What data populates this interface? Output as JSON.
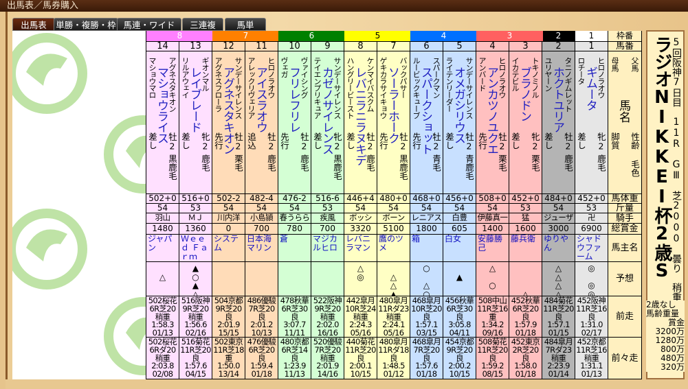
{
  "window": {
    "title": "出馬表／馬券購入"
  },
  "tabs": [
    {
      "label": "出馬表",
      "active": true
    },
    {
      "label": "単勝・複勝・枠連"
    },
    {
      "label": "馬連・ワイド"
    },
    {
      "label": "三連複"
    },
    {
      "label": "馬単"
    }
  ],
  "header_labels": {
    "frame": "枠番",
    "number": "馬番",
    "sire": "父馬",
    "dam": "母馬",
    "name": "馬名",
    "sex_age": "性齢",
    "style": "脚質",
    "color": "毛色",
    "weight": "馬体重",
    "kinryo": "斤量",
    "jockey": "騎手",
    "prize": "総賞金",
    "owner": "馬主名",
    "prediction": "予想",
    "prev": "前走",
    "prev2": "前々走"
  },
  "frame_colors": {
    "8": [
      "#ff80ff",
      "#ffe0ff",
      "#fff"
    ],
    "7": [
      "#ff8000",
      "#ffdcb8",
      "#fff"
    ],
    "6": [
      "#008000",
      "#d4ffd4",
      "#fff"
    ],
    "5": [
      "#ffff00",
      "#ffffc4",
      "#000"
    ],
    "4": [
      "#0070ff",
      "#c8e0ff",
      "#fff"
    ],
    "3": [
      "#ff6060",
      "#ffc0c0",
      "#fff"
    ],
    "2": [
      "#000000",
      "#b4b4b4",
      "#fff"
    ],
    "1": [
      "#ffffff",
      "#e6e6e6",
      "#000"
    ]
  },
  "horses": [
    {
      "frame": "8",
      "num": "14",
      "sire": "アグネスタキオン",
      "dam": "マショウマロ",
      "name": "マショウライス",
      "sex": "牡2",
      "color": "黒鹿毛",
      "style": "差し",
      "weight": "502+0",
      "kinryo": "54",
      "jockey": "羽山",
      "prize": "1480",
      "owner": "ジャパン",
      "marks": [
        "",
        "△",
        "",
        ""
      ],
      "prev": [
        "502桜花",
        "6R芝20",
        "稍重",
        "1:58.3",
        "01/13"
      ],
      "prev2": [
        "502桜花",
        "6Rダ20",
        "稍重",
        "2:03.8",
        "02/08"
      ]
    },
    {
      "frame": "8",
      "num": "13",
      "sire": "ギオンマル",
      "dam": "リルアウェイ",
      "name": "レイブレード",
      "sex": "牝2",
      "color": "鹿毛",
      "style": "差し",
      "weight": "516+0",
      "kinryo": "53",
      "jockey": "ＭＪ",
      "prize": "1360",
      "owner": "Ｗｅｅｄ Ｆａｒｍ",
      "marks": [
        "▲",
        "○",
        "▲",
        "△"
      ],
      "prev": [
        "516阪神",
        "9R芝20",
        "稍重",
        "1:56.6",
        "02/16"
      ],
      "prev2": [
        "516菊花",
        "11R芝20",
        "良",
        "1:57.6",
        "04/15"
      ]
    },
    {
      "frame": "7",
      "num": "12",
      "sire": "サンデーサイレンス",
      "dam": "アグネスフローラ",
      "name": "アグネスタキオン",
      "sex": "牡2",
      "color": "栗毛",
      "style": "先行",
      "weight": "502-2",
      "kinryo": "54",
      "jockey": "川内洋",
      "prize": "0",
      "owner": "システム",
      "marks": [
        "",
        "",
        "",
        ""
      ],
      "prev": [
        "504京都",
        "9R芝20",
        "良",
        "2:01.9",
        "15/15"
      ],
      "prev2": [
        "502東京",
        "11R芝18",
        "重",
        "1:50.0",
        "13/14"
      ]
    },
    {
      "frame": "7",
      "num": "11",
      "sire": "ヒロノラオウ",
      "dam": "アレックリヴェリア",
      "name": "アイスラオウ",
      "sex": "牡2",
      "color": "鹿毛",
      "style": "追込",
      "weight": "482-4",
      "kinryo": "54",
      "jockey": "小島頴",
      "prize": "700",
      "owner": "日本海マリン",
      "marks": [
        "",
        "",
        "",
        ""
      ],
      "prev": [
        "486優駿",
        "7R芝20",
        "良",
        "2:01.2",
        "10/13"
      ],
      "prev2": [
        "476優駿",
        "6R芝20",
        "良",
        "1:59.4",
        "01/18"
      ]
    },
    {
      "frame": "6",
      "num": "10",
      "sire": "ヴァイシング",
      "dam": "ヴェガ",
      "name": "フリレフリレ",
      "sex": "牡2",
      "color": "鹿毛",
      "style": "先行",
      "weight": "476-2",
      "kinryo": "54",
      "jockey": "春うらら",
      "prize": "780",
      "owner": "蒼",
      "marks": [
        "",
        "",
        "",
        ""
      ],
      "prev": [
        "478秋華",
        "6R芝30",
        "良",
        "3:07.7",
        "11/11"
      ],
      "prev2": [
        "480京都",
        "6R芝14",
        "良",
        "1:23.9",
        "11/13"
      ]
    },
    {
      "frame": "6",
      "num": "9",
      "sire": "サンデーサイレンス",
      "dam": "テイエンプリキュア",
      "name": "カゼノサイレンス",
      "sex": "牝2",
      "color": "黒鹿毛",
      "style": "差し",
      "weight": "516-6",
      "kinryo": "53",
      "jockey": "疾風",
      "prize": "700",
      "owner": "マジカルヒロ",
      "marks": [
        "",
        "",
        "",
        ""
      ],
      "prev": [
        "522阪神",
        "9R芝20",
        "稍重",
        "2:02.0",
        "16/16"
      ],
      "prev2": [
        "520優駿",
        "7R芝20",
        "稍重",
        "2:01.9",
        "14/16"
      ]
    },
    {
      "frame": "5",
      "num": "8",
      "sire": "ケンマイバスクム",
      "dam": "ハングリービースト",
      "name": "レバニラニラヌキデ",
      "sex": "牡2",
      "color": "鹿毛",
      "style": "差し",
      "weight": "446+4",
      "kinryo": "54",
      "jockey": "ボッシ",
      "prize": "3320",
      "owner": "レバニラマン",
      "marks": [
        "△",
        "◎",
        "",
        ""
      ],
      "prev": [
        "442皐月",
        "10R芝24",
        "稍重",
        "2:24.3",
        "05/16"
      ],
      "prev2": [
        "440菊花",
        "11R芝20",
        "良",
        "2:00.1",
        "10/15"
      ]
    },
    {
      "frame": "5",
      "num": "7",
      "sire": "バックパサー",
      "dam": "ゲキカラサイキョウ",
      "name": "ソーラーホーク",
      "sex": "牡2",
      "color": "黒鹿毛",
      "style": "先行",
      "weight": "480+0",
      "kinryo": "54",
      "jockey": "ボーン",
      "prize": "5100",
      "owner": "鷹のツメ",
      "marks": [
        "",
        "△",
        "△",
        "▲"
      ],
      "prev": [
        "480皐月",
        "11Rダ23",
        "稍重",
        "2:24.1",
        "05/16"
      ],
      "prev2": [
        "480皐月",
        "11Rダ18",
        "良",
        "1:48.5",
        "01/12"
      ]
    },
    {
      "frame": "4",
      "num": "6",
      "sire": "スパークマン",
      "dam": "ルービックキューブ",
      "name": "スパークショット",
      "sex": "牡2",
      "color": "青毛",
      "style": "先行",
      "weight": "468+0",
      "kinryo": "54",
      "jockey": "レニアス",
      "prize": "1800",
      "owner": "箱",
      "marks": [
        "○",
        "",
        "△",
        "○"
      ],
      "prev": [
        "468皐月",
        "10R芝20",
        "良",
        "1:57.1",
        "03/15"
      ],
      "prev2": [
        "468皐月",
        "7R芝20",
        "良",
        "1:57.6",
        "01/18"
      ]
    },
    {
      "frame": "4",
      "num": "5",
      "sire": "サンデーサイレンス",
      "dam": "ライテンリーダー",
      "name": "オメガシリウス",
      "sex": "牡2",
      "color": "青鹿毛",
      "style": "差し",
      "weight": "456+0",
      "kinryo": "54",
      "jockey": "白豊",
      "prize": "605",
      "owner": "白女",
      "marks": [
        "",
        "▲",
        "",
        ""
      ],
      "prev": [
        "456秋華",
        "6R芝30",
        "良",
        "3:05.8",
        "04/11"
      ],
      "prev2": [
        "454京都",
        "9R芝20",
        "良",
        "2:00.2",
        "10/15"
      ]
    },
    {
      "frame": "3",
      "num": "4",
      "sire": "ヒロノラオウ",
      "dam": "アンバード",
      "name": "アンカツノユクエ",
      "sex": "牡2",
      "color": "栗毛",
      "style": "先行",
      "weight": "508+0",
      "kinryo": "54",
      "jockey": "伊藤真一",
      "prize": "1400",
      "owner": "安藤勝己",
      "marks": [
        "△",
        "",
        "○",
        ""
      ],
      "prev": [
        "508中山",
        "11R芝16",
        "重",
        "1:34.2",
        "09/16"
      ],
      "prev2": [
        "508菊花",
        "11R芝20",
        "良",
        "1:59.2",
        "08/15"
      ]
    },
    {
      "frame": "3",
      "num": "3",
      "sire": "トキノミノル",
      "dam": "イカテビル",
      "name": "ブラノドン",
      "sex": "牝2",
      "color": "栗毛",
      "style": "差し",
      "weight": "452+0",
      "kinryo": "53",
      "jockey": "猛",
      "prize": "1600",
      "owner": "藤兵衛",
      "marks": [
        "",
        "",
        "",
        "△"
      ],
      "prev": [
        "452秋華",
        "6R芝20",
        "良",
        "1:57.9",
        "01/18"
      ],
      "prev2": [
        "452東京",
        "2R芝20",
        "良",
        "1:58.0",
        "01/18"
      ]
    },
    {
      "frame": "2",
      "num": "2",
      "sire": "タニノギムレット",
      "dam": "ユリヤーン",
      "name": "ホクトユリア",
      "sex": "牡2",
      "color": "鹿毛",
      "style": "差し",
      "weight": "484+0",
      "kinryo": "54",
      "jockey": "ジューザ",
      "prize": "3000",
      "owner": "ゆりやん",
      "marks": [
        "△",
        "△",
        "△",
        "△"
      ],
      "prev": [
        "484菊花",
        "11R芝20",
        "良",
        "1:57.1",
        "01/15"
      ],
      "prev2": [
        "484皐月",
        "7Rダ23",
        "稍重",
        "2:23.9",
        "01/14"
      ]
    },
    {
      "frame": "1",
      "num": "1",
      "sire": "ヒロノラオウ",
      "dam": "ロチータ",
      "name": "ギムータ",
      "sex": "牝2",
      "color": "鹿毛",
      "style": "差し",
      "weight": "452+0",
      "kinryo": "53",
      "jockey": "卍",
      "prize": "6900",
      "owner": "シャドウファーム",
      "marks": [
        "◎",
        "",
        "◎",
        "◎"
      ],
      "prev": [
        "452阪神",
        "11R芝16",
        "良",
        "1:31.0",
        "02/17"
      ],
      "prev2": [
        "452京都",
        "11R芝16",
        "稍重",
        "1:31.1",
        "01/13"
      ]
    }
  ],
  "race": {
    "info": "5回阪神7日目　11R　GⅢ　芝2000　曇り　稍重",
    "title": "ラジオNIKKEI杯2歳S",
    "conditions": [
      "2歳なし",
      "馬齢重量"
    ],
    "prize_label": "賞金",
    "prizes": [
      "3200万",
      "1280万",
      "800万",
      "480万",
      "320万"
    ]
  }
}
